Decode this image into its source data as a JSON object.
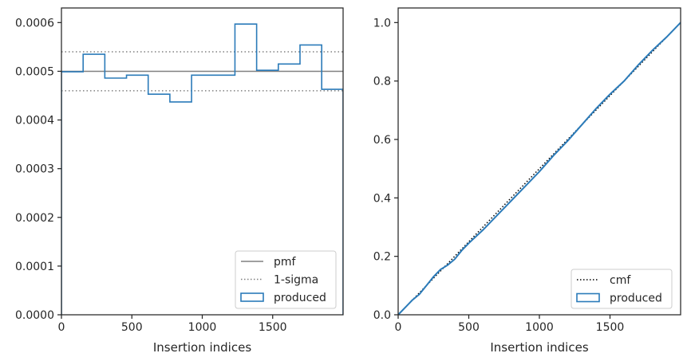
{
  "chart_data": [
    {
      "type": "line",
      "xlabel": "Insertion indices",
      "ylabel": "",
      "xlim": [
        0,
        2000
      ],
      "ylim": [
        0,
        0.00063
      ],
      "xticks": [
        0,
        500,
        1000,
        1500
      ],
      "xtick_labels": [
        "0",
        "500",
        "1000",
        "1500"
      ],
      "yticks": [
        0,
        0.0001,
        0.0002,
        0.0003,
        0.0004,
        0.0005,
        0.0006
      ],
      "ytick_labels": [
        "0.0000",
        "0.0001",
        "0.0002",
        "0.0003",
        "0.0004",
        "0.0005",
        "0.0006"
      ],
      "grid": false,
      "legend_position": "bottom-right",
      "pmf": 0.0005,
      "sigma_bounds": [
        0.00046,
        0.00054
      ],
      "series": [
        {
          "name": "pmf",
          "color": "#808080",
          "style": "solid"
        },
        {
          "name": "1-sigma",
          "color": "#808080",
          "style": "dotted"
        },
        {
          "name": "produced",
          "color": "#2b7bb9",
          "style": "step",
          "bin_edges": [
            0,
            154,
            308,
            462,
            616,
            770,
            924,
            1078,
            1232,
            1386,
            1540,
            1694,
            1848,
            2000
          ],
          "values": [
            0.000499,
            0.000535,
            0.000486,
            0.000492,
            0.000453,
            0.000437,
            0.000492,
            0.000492,
            0.000597,
            0.000502,
            0.000515,
            0.000554,
            0.000463
          ]
        }
      ]
    },
    {
      "type": "line",
      "xlabel": "Insertion indices",
      "ylabel": "",
      "xlim": [
        0,
        2000
      ],
      "ylim": [
        0,
        1.05
      ],
      "xticks": [
        0,
        500,
        1000,
        1500
      ],
      "xtick_labels": [
        "0",
        "500",
        "1000",
        "1500"
      ],
      "yticks": [
        0,
        0.2,
        0.4,
        0.6,
        0.8,
        1.0
      ],
      "ytick_labels": [
        "0.0",
        "0.2",
        "0.4",
        "0.6",
        "0.8",
        "1.0"
      ],
      "grid": false,
      "legend_position": "bottom-right",
      "series": [
        {
          "name": "cmf",
          "color": "#000000",
          "style": "dotted",
          "x": [
            0,
            2000
          ],
          "y": [
            0,
            1
          ]
        },
        {
          "name": "produced",
          "color": "#2b7bb9",
          "style": "step",
          "x": [
            0,
            50,
            100,
            150,
            200,
            250,
            300,
            350,
            400,
            450,
            500,
            600,
            700,
            800,
            900,
            1000,
            1100,
            1200,
            1300,
            1400,
            1500,
            1600,
            1700,
            1800,
            1900,
            2000
          ],
          "y": [
            0,
            0.025,
            0.05,
            0.07,
            0.1,
            0.13,
            0.155,
            0.17,
            0.19,
            0.22,
            0.245,
            0.29,
            0.34,
            0.39,
            0.44,
            0.49,
            0.545,
            0.595,
            0.65,
            0.705,
            0.755,
            0.8,
            0.855,
            0.905,
            0.95,
            1.0
          ]
        }
      ]
    }
  ]
}
